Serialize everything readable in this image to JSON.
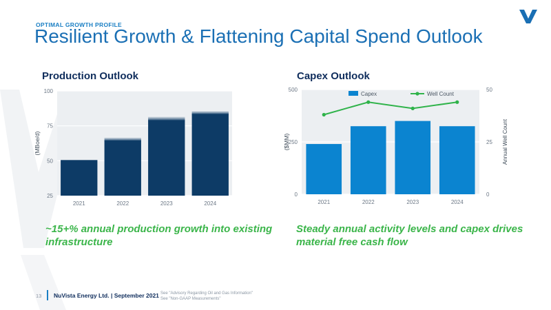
{
  "header": {
    "eyebrow": "OPTIMAL GROWTH PROFILE",
    "title": "Resilient Growth & Flattening Capital Spend Outlook"
  },
  "colors": {
    "navy": "#0d3b66",
    "blue": "#0b84d0",
    "green": "#2fb34a",
    "title_blue": "#1a6fb4"
  },
  "panels": {
    "production": {
      "title": "Production Outlook",
      "caption": "~15+% annual production growth into existing infrastructure"
    },
    "capex": {
      "title": "Capex Outlook",
      "caption": "Steady annual activity levels and capex drives material free cash flow"
    }
  },
  "chart_data": [
    {
      "type": "bar",
      "categories": [
        "2021",
        "2022",
        "2023",
        "2024"
      ],
      "series": [
        {
          "values": [
            50.5,
            64.5,
            79,
            83.5
          ],
          "color": "#0d3b66"
        }
      ],
      "range_tops": [
        null,
        67,
        82,
        86
      ],
      "ylabel": "(MBoe/d)",
      "ylim": [
        25,
        100
      ],
      "yticks": [
        25,
        50,
        75,
        100
      ],
      "grid": true
    },
    {
      "type": "bar",
      "categories": [
        "2021",
        "2022",
        "2023",
        "2024"
      ],
      "series": [
        {
          "name": "Capex",
          "type": "bar",
          "axis": "left",
          "values": [
            240,
            325,
            350,
            325
          ],
          "color": "#0b84d0"
        },
        {
          "name": "Well Count",
          "type": "line",
          "axis": "right",
          "values": [
            38,
            44,
            41,
            44
          ],
          "color": "#2fb34a"
        }
      ],
      "ylabel": "($MM)",
      "ylim": [
        0,
        500
      ],
      "yticks": [
        0,
        250,
        500
      ],
      "y2label": "Annual Well Count",
      "y2lim": [
        0,
        50
      ],
      "y2ticks": [
        0,
        25,
        50
      ],
      "legend": "top",
      "grid": true
    }
  ],
  "footer": {
    "page": "13",
    "company": "NuVista Energy Ltd. | September 2021",
    "note_1": "See \"Advisory Regarding Oil and Gas Information\"",
    "note_2": "See \"Non-GAAP Measurements\""
  }
}
